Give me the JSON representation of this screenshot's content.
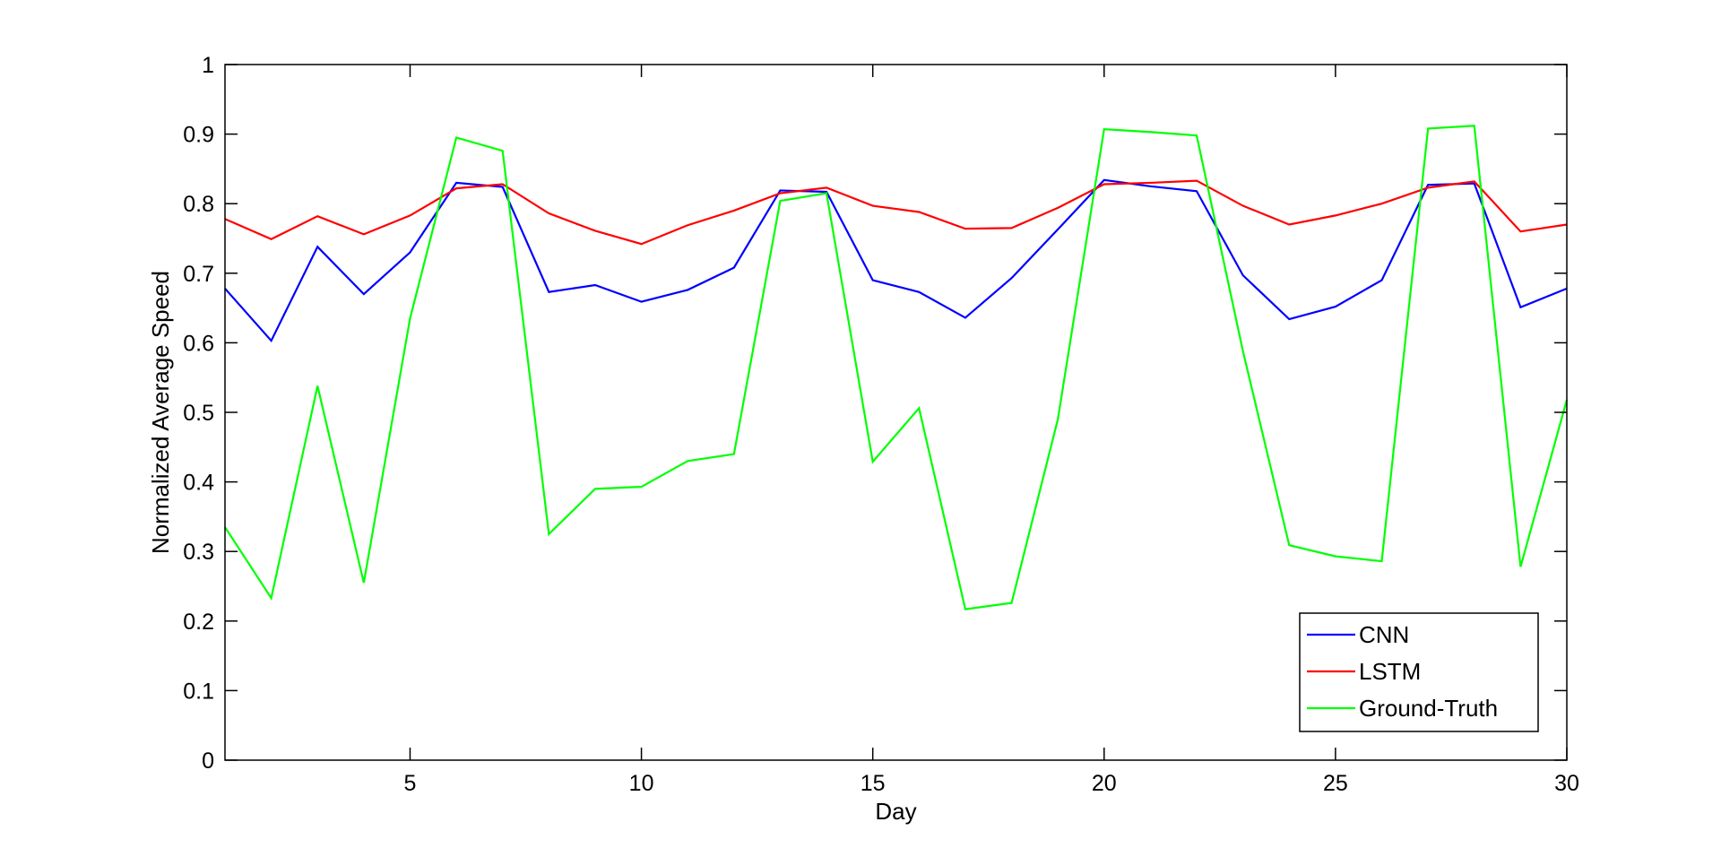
{
  "chart_data": {
    "type": "line",
    "title": "",
    "xlabel": "Day",
    "ylabel": "Normalized Average Speed",
    "xlim": [
      1,
      30
    ],
    "ylim": [
      0,
      1
    ],
    "x_ticks": [
      5,
      10,
      15,
      20,
      25,
      30
    ],
    "y_ticks": [
      0,
      0.1,
      0.2,
      0.3,
      0.4,
      0.5,
      0.6,
      0.7,
      0.8,
      0.9,
      1
    ],
    "y_tick_labels": [
      "0",
      "0.1",
      "0.2",
      "0.3",
      "0.4",
      "0.5",
      "0.6",
      "0.7",
      "0.8",
      "0.9",
      "1"
    ],
    "grid": false,
    "legend_position": "bottom-right",
    "x": [
      1,
      2,
      3,
      4,
      5,
      6,
      7,
      8,
      9,
      10,
      11,
      12,
      13,
      14,
      15,
      16,
      17,
      18,
      19,
      20,
      21,
      22,
      23,
      24,
      25,
      26,
      27,
      28,
      29,
      30
    ],
    "series": [
      {
        "name": "CNN",
        "color": "#0000ff",
        "values": [
          0.678,
          0.603,
          0.738,
          0.67,
          0.73,
          0.83,
          0.824,
          0.673,
          0.683,
          0.659,
          0.676,
          0.708,
          0.819,
          0.817,
          0.69,
          0.673,
          0.636,
          0.693,
          0.763,
          0.834,
          0.825,
          0.818,
          0.697,
          0.634,
          0.652,
          0.69,
          0.827,
          0.829,
          0.651,
          0.678
        ]
      },
      {
        "name": "LSTM",
        "color": "#ff0000",
        "values": [
          0.778,
          0.749,
          0.782,
          0.756,
          0.783,
          0.822,
          0.828,
          0.786,
          0.761,
          0.742,
          0.769,
          0.79,
          0.815,
          0.823,
          0.797,
          0.788,
          0.764,
          0.765,
          0.794,
          0.828,
          0.83,
          0.833,
          0.797,
          0.77,
          0.783,
          0.8,
          0.823,
          0.832,
          0.76,
          0.77
        ]
      },
      {
        "name": "Ground-Truth",
        "color": "#00ff00",
        "values": [
          0.335,
          0.233,
          0.538,
          0.255,
          0.635,
          0.895,
          0.876,
          0.325,
          0.39,
          0.393,
          0.43,
          0.44,
          0.804,
          0.815,
          0.429,
          0.506,
          0.217,
          0.226,
          0.49,
          0.907,
          0.903,
          0.898,
          0.588,
          0.309,
          0.293,
          0.286,
          0.908,
          0.912,
          0.278,
          0.518
        ]
      }
    ]
  }
}
